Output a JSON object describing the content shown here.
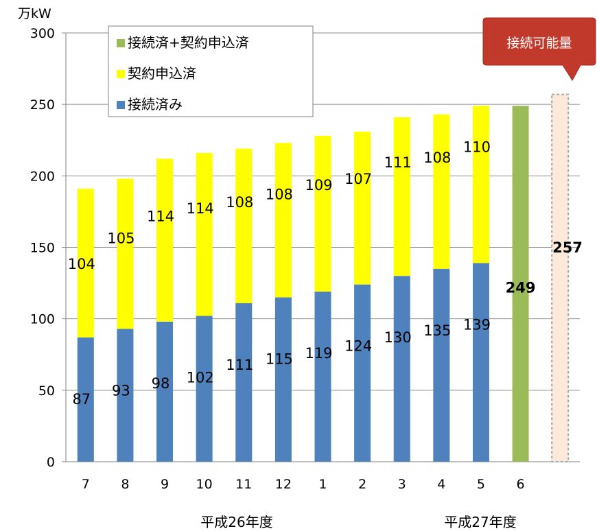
{
  "chart_data": {
    "type": "bar",
    "stacked": true,
    "unit_label": "万kW",
    "categories": [
      "7",
      "8",
      "9",
      "10",
      "11",
      "12",
      "1",
      "2",
      "3",
      "4",
      "5",
      "6"
    ],
    "series": [
      {
        "name": "接続済み",
        "color": "#4f81bd",
        "values": [
          87,
          93,
          98,
          102,
          111,
          115,
          119,
          124,
          130,
          135,
          139,
          null
        ]
      },
      {
        "name": "契約申込済",
        "color": "#ffff00",
        "values": [
          104,
          105,
          114,
          114,
          108,
          108,
          109,
          107,
          111,
          108,
          110,
          null
        ]
      },
      {
        "name": "接続済+契約申込済",
        "color": "#9bbb59",
        "values": [
          null,
          null,
          null,
          null,
          null,
          null,
          null,
          null,
          null,
          null,
          null,
          249
        ]
      }
    ],
    "capacity": {
      "label": "接続可能量",
      "value": 257,
      "fill": "#fde9d9",
      "border": "#a6a6a6"
    },
    "ylim": [
      0,
      300
    ],
    "yticks": [
      0,
      50,
      100,
      150,
      200,
      250,
      300
    ],
    "fiscal_year_labels": [
      {
        "label": "平成26年度",
        "start": "7",
        "end": "3"
      },
      {
        "label": "平成27年度",
        "start": "4",
        "end": "6"
      }
    ],
    "legend": {
      "position": "top-left",
      "order": [
        "接続済+契約申込済",
        "契約申込済",
        "接続済み"
      ]
    },
    "grid": true
  }
}
